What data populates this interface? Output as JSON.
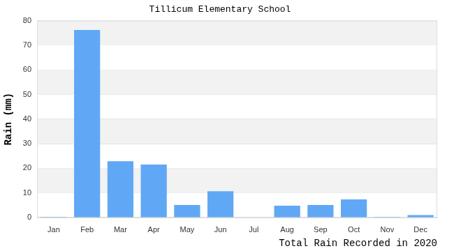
{
  "chart_data": {
    "type": "bar",
    "title": "Tillicum Elementary School",
    "ylabel": "Rain (mm)",
    "xlabel": "Total Rain Recorded in 2020",
    "categories": [
      "Jan",
      "Feb",
      "Mar",
      "Apr",
      "May",
      "Jun",
      "Jul",
      "Aug",
      "Sep",
      "Oct",
      "Nov",
      "Dec"
    ],
    "values": [
      0.3,
      76.2,
      22.9,
      21.5,
      5.1,
      10.7,
      0,
      4.8,
      5.1,
      7.4,
      0.3,
      1.0
    ],
    "color": "#60a8f5",
    "ylim": [
      0,
      80
    ],
    "yticks": [
      0,
      10,
      20,
      30,
      40,
      50,
      60,
      70,
      80
    ],
    "grid": true
  }
}
